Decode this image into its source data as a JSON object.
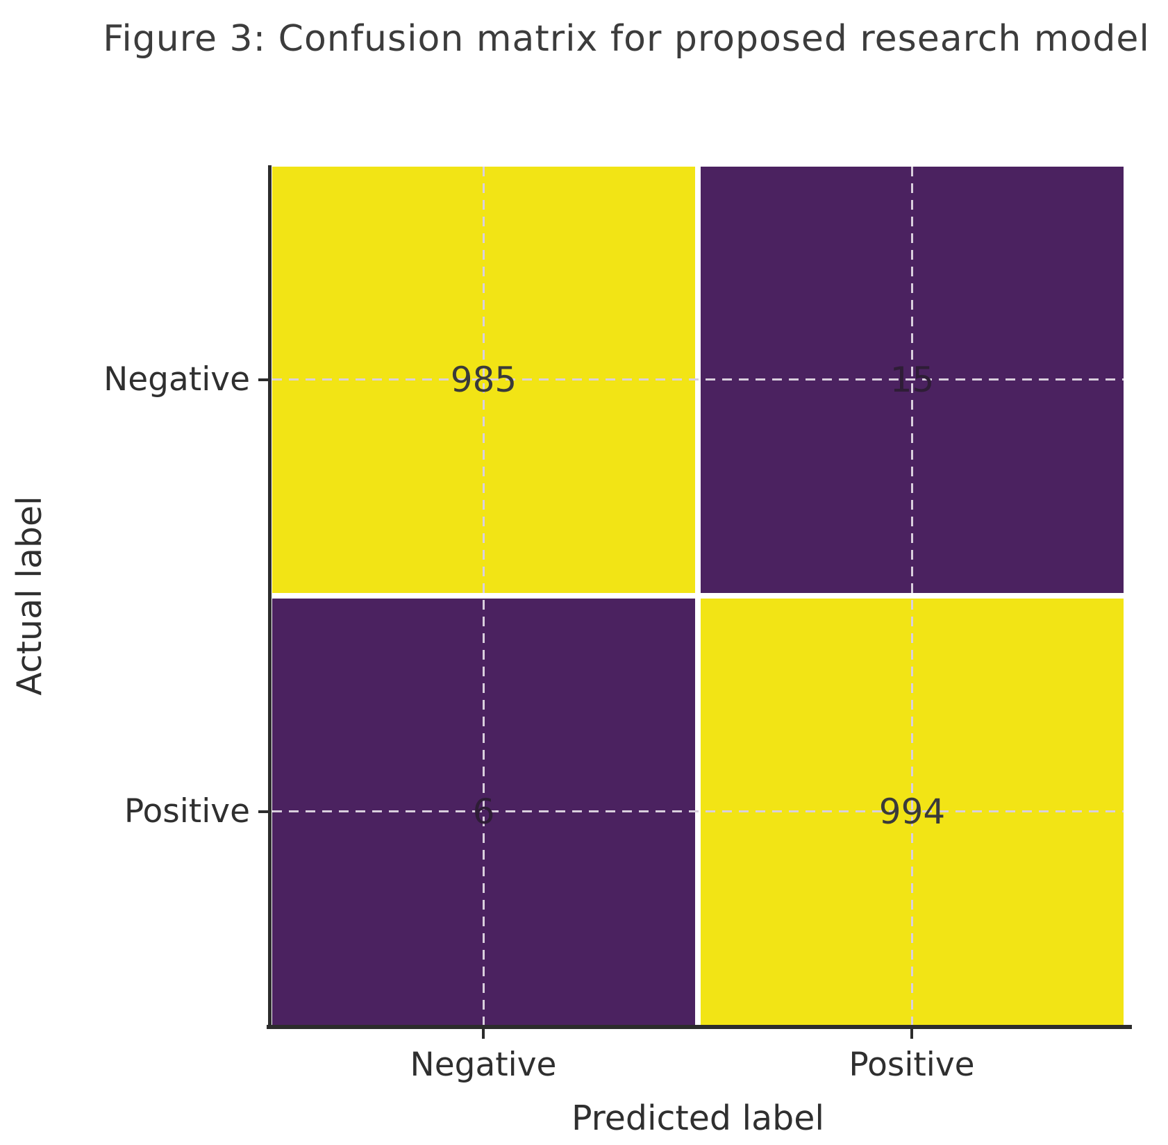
{
  "figure": {
    "title": "Figure 3: Confusion matrix for proposed research model"
  },
  "chart_data": {
    "type": "heatmap",
    "subtype": "confusion-matrix",
    "title": "Figure 3: Confusion matrix for proposed research model",
    "xlabel": "Predicted label",
    "ylabel": "Actual label",
    "x_tick_labels": [
      "Negative",
      "Positive"
    ],
    "y_tick_labels": [
      "Negative",
      "Positive"
    ],
    "matrix": [
      [
        985,
        15
      ],
      [
        6,
        994
      ]
    ],
    "cells": {
      "true_negative": 985,
      "false_positive": 15,
      "false_negative": 6,
      "true_positive": 994
    },
    "colormap": "viridis",
    "legend": "none",
    "grid": "dashed crosshair lines through cell centers",
    "colors": {
      "high_value_cell": "#f2e415",
      "low_value_cell": "#4b2260",
      "cell_gap": "#ffffff",
      "grid_dash": "#d9cfdd",
      "value_text": "#3a3a3a",
      "axis_spine": "#2c2c2c",
      "label_text": "#2f2f2f",
      "title_text": "#3c3c3c"
    }
  }
}
